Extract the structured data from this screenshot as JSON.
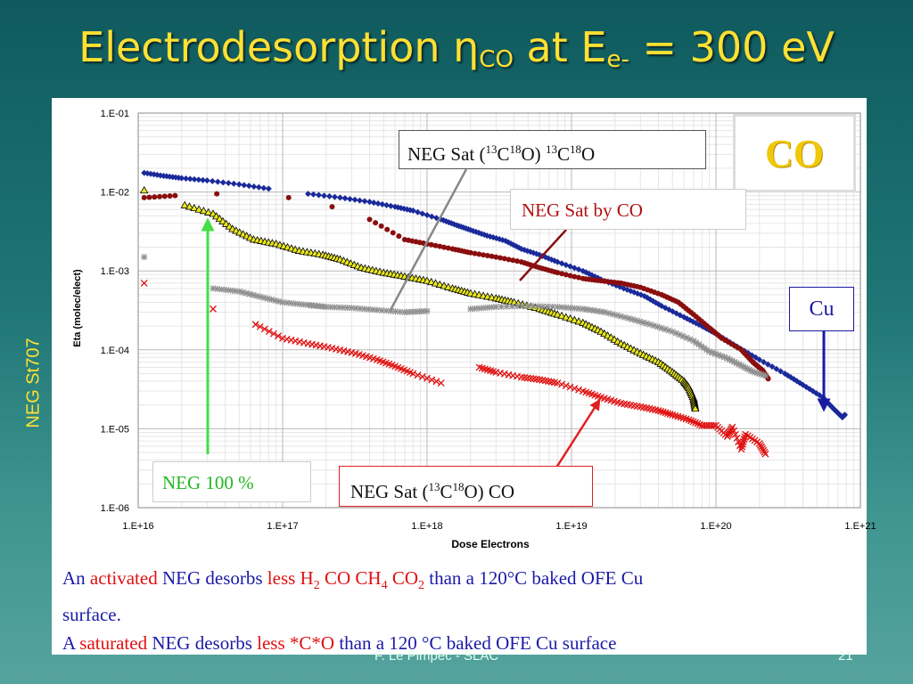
{
  "slide": {
    "title_main": "Electrodesorption ",
    "title_eta": "η",
    "title_eta_sub": "CO",
    "title_mid": " at E",
    "title_e_sub": "e-",
    "title_end": " = 300 eV",
    "side_label": "NEG St707",
    "footer_left": "F. Le Pimpec - SLAC",
    "footer_right": "21"
  },
  "annotations": {
    "co_box": "CO",
    "cu_box": "Cu",
    "neg_sat_c13_pre": "NEG Sat (",
    "neg_sat_c13_iso1": "13",
    "neg_sat_c13_c": "C",
    "neg_sat_c13_iso2": "18",
    "neg_sat_c13_mid": "O) ",
    "neg_sat_c13_iso3": "13",
    "neg_sat_c13_c2": "C",
    "neg_sat_c13_iso4": "18",
    "neg_sat_c13_end": "O",
    "neg_sat_by_co": "NEG Sat by CO",
    "neg_100": "NEG 100 %",
    "neg_sat_co_pre": "NEG Sat (",
    "neg_sat_co_iso1": "13",
    "neg_sat_co_c": "C",
    "neg_sat_co_iso2": "18",
    "neg_sat_co_end": "O) CO"
  },
  "caption": {
    "l1_a": "An ",
    "l1_b": "activated",
    "l1_c": " NEG desorbs ",
    "l1_d": "less",
    "l1_e": " H",
    "l1_e_sub": "2",
    "l1_f": " CO CH",
    "l1_f_sub": "4",
    "l1_g": " CO",
    "l1_g_sub": "2",
    "l1_h": " than a 120°C baked OFE Cu",
    "l2": "surface.",
    "l3_a": " A ",
    "l3_b": "saturated",
    "l3_c": " NEG desorbs ",
    "l3_d": "less *C*O",
    "l3_e": " than a 120 °C baked OFE Cu surface"
  },
  "chart_data": {
    "type": "scatter",
    "xlabel": "Dose Electrons",
    "ylabel": "Eta (molec/elect)",
    "x_scale": "log",
    "y_scale": "log",
    "xlim": [
      1e+16,
      1e+21
    ],
    "ylim": [
      1e-06,
      0.1
    ],
    "x_ticks": [
      "1.E+16",
      "1.E+17",
      "1.E+18",
      "1.E+19",
      "1.E+20",
      "1.E+21"
    ],
    "y_ticks": [
      "1.E-06",
      "1.E-05",
      "1.E-04",
      "1.E-03",
      "1.E-02",
      "1.E-01"
    ],
    "grid": true,
    "series": [
      {
        "marker": "diamond",
        "color": "#1a2a9a",
        "points": [
          [
            1.1e+16,
            0.0175
          ],
          [
            1.5e+16,
            0.016
          ],
          [
            2e+16,
            0.015
          ],
          [
            3e+16,
            0.014
          ],
          [
            5e+16,
            0.0125
          ],
          [
            8e+16,
            0.011
          ],
          [
            1.5e+17,
            0.0095
          ],
          [
            2.5e+17,
            0.0085
          ],
          [
            4e+17,
            0.0075
          ],
          [
            6e+17,
            0.0065
          ],
          [
            8e+17,
            0.0058
          ],
          [
            1.25e+18,
            0.0045
          ],
          [
            1.6e+18,
            0.0038
          ],
          [
            2e+18,
            0.0033
          ],
          [
            2.6e+18,
            0.0028
          ],
          [
            3.5e+18,
            0.0024
          ],
          [
            4.5e+18,
            0.0019
          ],
          [
            6e+18,
            0.0016
          ],
          [
            8e+18,
            0.0013
          ],
          [
            1.2e+19,
            0.001
          ],
          [
            1.6e+19,
            0.00078
          ],
          [
            2.3e+19,
            0.0006
          ],
          [
            3.2e+19,
            0.00048
          ],
          [
            4.2e+19,
            0.00036
          ],
          [
            6e+19,
            0.00026
          ],
          [
            8e+19,
            0.0002
          ],
          [
            1e+20,
            0.00016
          ],
          [
            1.4e+20,
            0.00011
          ],
          [
            2e+20,
            7.5e-05
          ],
          [
            3e+20,
            5e-05
          ],
          [
            4e+20,
            3.6e-05
          ],
          [
            5.5e+20,
            2.5e-05
          ],
          [
            6.5e+20,
            1.8e-05
          ],
          [
            7.5e+20,
            1.4e-05
          ],
          [
            7.8e+20,
            1.5e-05
          ]
        ]
      },
      {
        "marker": "circle",
        "color": "#8a0e0e",
        "points": [
          [
            1.1e+16,
            0.0085
          ],
          [
            1.8e+16,
            0.009
          ],
          [
            3.5e+16,
            0.0095
          ],
          [
            1.1e+17,
            0.0085
          ],
          [
            2.2e+17,
            0.0065
          ],
          [
            4e+17,
            0.0045
          ],
          [
            7e+17,
            0.0025
          ],
          [
            1e+18,
            0.0022
          ],
          [
            1.5e+18,
            0.0019
          ],
          [
            2e+18,
            0.0017
          ],
          [
            3e+18,
            0.0015
          ],
          [
            4.5e+18,
            0.0013
          ],
          [
            6e+18,
            0.0011
          ],
          [
            8e+18,
            0.00095
          ],
          [
            1.2e+19,
            0.0008
          ],
          [
            1.6e+19,
            0.00075
          ],
          [
            2.2e+19,
            0.0007
          ],
          [
            3e+19,
            0.00062
          ],
          [
            4.2e+19,
            0.0005
          ],
          [
            5.5e+19,
            0.0004
          ],
          [
            7e+19,
            0.00028
          ],
          [
            9e+19,
            0.00019
          ],
          [
            1.1e+20,
            0.00014
          ],
          [
            1.5e+20,
            0.0001
          ],
          [
            1.8e+20,
            7e-05
          ],
          [
            2.1e+20,
            5.5e-05
          ],
          [
            2.3e+20,
            4.3e-05
          ]
        ]
      },
      {
        "marker": "triangle",
        "color": "#e8e820",
        "points": [
          [
            1.1e+16,
            0.0105
          ],
          [
            2.1e+16,
            0.0068
          ],
          [
            3.3e+16,
            0.0053
          ],
          [
            4.5e+16,
            0.0034
          ],
          [
            6.3e+16,
            0.0025
          ],
          [
            9e+16,
            0.0022
          ],
          [
            1.3e+17,
            0.0018
          ],
          [
            1.9e+17,
            0.0016
          ],
          [
            2.5e+17,
            0.0014
          ],
          [
            3.5e+17,
            0.0011
          ],
          [
            5e+17,
            0.00095
          ],
          [
            7e+17,
            0.00085
          ],
          [
            1e+18,
            0.00075
          ],
          [
            1.5e+18,
            0.0006
          ],
          [
            2e+18,
            0.00052
          ],
          [
            3e+18,
            0.00045
          ],
          [
            4e+18,
            0.0004
          ],
          [
            6e+18,
            0.00033
          ],
          [
            8e+18,
            0.00028
          ],
          [
            1.2e+19,
            0.00022
          ],
          [
            1.6e+19,
            0.00017
          ],
          [
            2.2e+19,
            0.00012
          ],
          [
            3e+19,
            9e-05
          ],
          [
            4e+19,
            7e-05
          ],
          [
            5e+19,
            5.2e-05
          ],
          [
            6e+19,
            4e-05
          ],
          [
            6.5e+19,
            3.3e-05
          ],
          [
            7e+19,
            2.4e-05
          ],
          [
            7.2e+19,
            1.8e-05
          ]
        ]
      },
      {
        "marker": "star",
        "color": "#909090",
        "points": [
          [
            1.1e+16,
            0.0015
          ],
          [
            3.3e+16,
            0.0006
          ],
          [
            5e+16,
            0.00055
          ],
          [
            7e+16,
            0.00047
          ],
          [
            1e+17,
            0.0004
          ],
          [
            1.5e+17,
            0.00037
          ],
          [
            2e+17,
            0.00035
          ],
          [
            3e+17,
            0.00034
          ],
          [
            4.5e+17,
            0.00032
          ],
          [
            7e+17,
            0.0003
          ],
          [
            1e+18,
            0.00031
          ],
          [
            2e+18,
            0.00033
          ],
          [
            3e+18,
            0.00035
          ],
          [
            5e+18,
            0.00036
          ],
          [
            8e+18,
            0.00035
          ],
          [
            1.2e+19,
            0.00033
          ],
          [
            1.7e+19,
            0.0003
          ],
          [
            2.5e+19,
            0.00025
          ],
          [
            3.5e+19,
            0.00021
          ],
          [
            5e+19,
            0.00017
          ],
          [
            7e+19,
            0.00013
          ],
          [
            9e+19,
            9.5e-05
          ],
          [
            1.2e+20,
            7.8e-05
          ],
          [
            1.5e+20,
            6.3e-05
          ],
          [
            1.8e+20,
            5.3e-05
          ],
          [
            2.2e+20,
            4.7e-05
          ]
        ]
      },
      {
        "marker": "x",
        "color": "#e01010",
        "points": [
          [
            1.1e+16,
            0.0007
          ],
          [
            3.3e+16,
            0.00033
          ],
          [
            6.5e+16,
            0.00021
          ],
          [
            1e+17,
            0.00014
          ],
          [
            1.5e+17,
            0.00012
          ],
          [
            2.2e+17,
            0.000105
          ],
          [
            3.2e+17,
            9e-05
          ],
          [
            4.5e+17,
            7.5e-05
          ],
          [
            6e+17,
            6.2e-05
          ],
          [
            8e+17,
            5e-05
          ],
          [
            1.25e+18,
            3.8e-05
          ],
          [
            2.3e+18,
            6e-05
          ],
          [
            3e+18,
            5.2e-05
          ],
          [
            4.5e+18,
            4.5e-05
          ],
          [
            6e+18,
            4.2e-05
          ],
          [
            8e+18,
            3.8e-05
          ],
          [
            1.2e+19,
            3e-05
          ],
          [
            1.6e+19,
            2.5e-05
          ],
          [
            2.2e+19,
            2.1e-05
          ],
          [
            3e+19,
            1.9e-05
          ],
          [
            4e+19,
            1.7e-05
          ],
          [
            5e+19,
            1.5e-05
          ],
          [
            6.5e+19,
            1.3e-05
          ],
          [
            8e+19,
            1.1e-05
          ],
          [
            1e+20,
            1.1e-05
          ],
          [
            1.3e+20,
            1.05e-05
          ],
          [
            1.6e+20,
            8.5e-06
          ],
          [
            2e+20,
            6.5e-06
          ],
          [
            2.2e+20,
            4.8e-06
          ],
          [
            1.2e+20,
            8e-06
          ],
          [
            1.5e+20,
            5.5e-06
          ]
        ]
      }
    ]
  }
}
